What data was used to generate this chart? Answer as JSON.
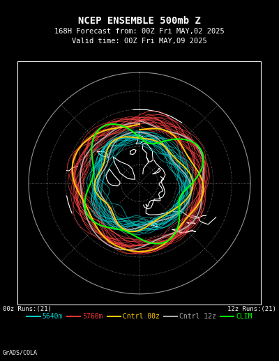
{
  "title_line1": "NCEP ENSEMBLE 500mb Z",
  "title_line2": "168H Forecast from: 00Z Fri MAY,02 2025",
  "title_line3": "Valid time: 00Z Fri MAY,09 2025",
  "background_color": "#000000",
  "grid_color": "#bbbbbb",
  "coastline_color": "#ffffff",
  "legend_items": [
    {
      "label": "5640m",
      "color": "#00cccc",
      "lw": 1.5
    },
    {
      "label": "5760m",
      "color": "#ff3333",
      "lw": 1.5
    },
    {
      "label": "Cntrl 00z",
      "color": "#ffcc00",
      "lw": 1.5
    },
    {
      "label": "Cntrl 12z",
      "color": "#aaaaaa",
      "lw": 1.5
    },
    {
      "label": "CLIM",
      "color": "#00ff00",
      "lw": 1.5
    }
  ],
  "legend_left_text": "00z Runs:(21)",
  "legend_right_text": "12z Runs:(21)",
  "footer_text": "GrADS/COLA",
  "title_fontsize": 10,
  "subtitle_fontsize": 7.5,
  "n_ensemble_cyan": 21,
  "n_ensemble_red": 21,
  "cyan_base_lat": 52,
  "red_base_lat": 38
}
